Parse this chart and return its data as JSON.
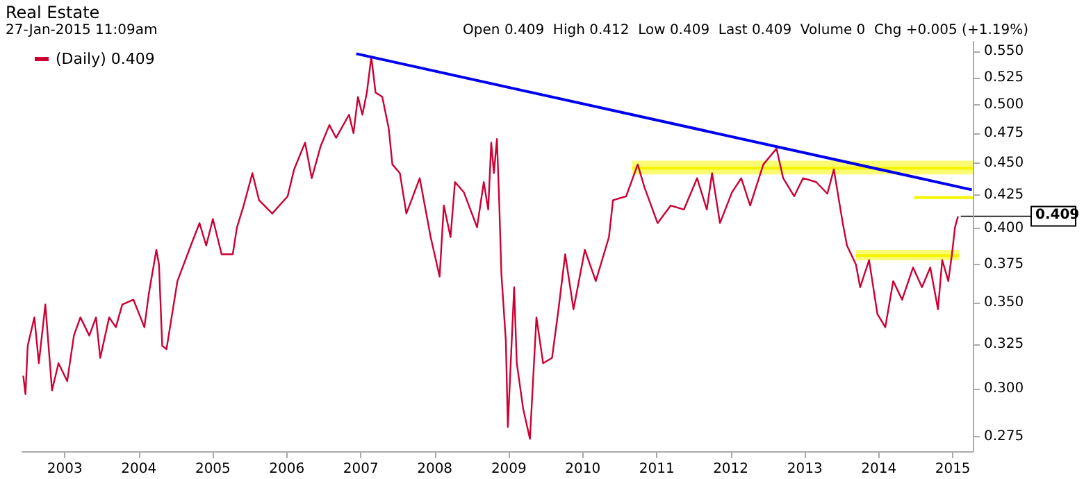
{
  "chart_data": {
    "type": "line",
    "title": "Real Estate",
    "annotations": [
      "27-Jan-2015 11:09am",
      "Open 0.409  High 0.412  Low 0.409  Last 0.409  Volume 0  Chg +0.005 (+1.19%)",
      {
        "text": "0.409",
        "x": "2015-01-27",
        "y": 0.409
      }
    ],
    "xlim": [
      "2002-06-05",
      "2015-04-10"
    ],
    "ylim": [
      0.268,
      0.56
    ],
    "log": true,
    "legend": "top left",
    "marker": "none",
    "line_style": "solid",
    "xticks": [
      "2003",
      "2004",
      "2005",
      "2006",
      "2007",
      "2008",
      "2009",
      "2010",
      "2011",
      "2012",
      "2013",
      "2014",
      "2015"
    ],
    "yticks": [
      0.275,
      {
        "value": 0.3,
        "label": "0.300"
      },
      0.325,
      {
        "value": 0.35,
        "label": "0.350"
      },
      0.375,
      {
        "value": 0.4,
        "label": "0.400"
      },
      0.425,
      {
        "value": 0.45,
        "label": "0.450"
      },
      0.475,
      {
        "value": 0.5,
        "label": "0.500"
      },
      0.525,
      {
        "value": 0.55,
        "label": "0.550"
      }
    ],
    "series": [
      {
        "type": "line",
        "color": "#f5f500",
        "x": [
          "2010-09-01",
          "2015-04-10"
        ],
        "values": [
          0.446,
          0.446
        ],
        "lower": [
          0.441,
          0.441
        ],
        "upper": [
          0.452,
          0.452
        ]
      },
      {
        "type": "line",
        "color": "#f5f500",
        "x": [
          "2014-06-25",
          "2015-04-10"
        ],
        "values": [
          0.423,
          0.423
        ],
        "lower": [
          0.422,
          0.422
        ],
        "upper": [
          0.424,
          0.424
        ]
      },
      {
        "type": "line",
        "color": "#f5f500",
        "x": [
          "2013-09-10",
          "2015-02-01"
        ],
        "values": [
          0.381,
          0.381
        ],
        "lower": [
          0.378,
          0.378
        ],
        "upper": [
          0.385,
          0.385
        ]
      },
      {
        "name": "(Daily) 0.409",
        "color": "#cc0033",
        "x": [
          "2002-06-10",
          "2002-06-21",
          "2002-07-02",
          "2002-08-04",
          "2002-08-26",
          "2002-09-27",
          "2002-10-30",
          "2002-12-01",
          "2003-01-13",
          "2003-02-15",
          "2003-03-19",
          "2003-05-02",
          "2003-06-04",
          "2003-06-25",
          "2003-08-08",
          "2003-09-10",
          "2003-10-12",
          "2003-12-06",
          "2004-01-29",
          "2004-02-20",
          "2004-03-28",
          "2004-04-10",
          "2004-04-26",
          "2004-05-17",
          "2004-07-10",
          "2004-09-14",
          "2004-10-27",
          "2004-11-29",
          "2005-01-01",
          "2005-02-13",
          "2005-04-09",
          "2005-04-30",
          "2005-06-02",
          "2005-07-15",
          "2005-08-17",
          "2005-10-21",
          "2006-01-05",
          "2006-02-06",
          "2006-04-01",
          "2006-05-04",
          "2006-06-17",
          "2006-07-30",
          "2006-09-01",
          "2006-11-04",
          "2006-11-26",
          "2006-12-18",
          "2007-01-09",
          "2007-01-31",
          "2007-02-22",
          "2007-03-15",
          "2007-04-17",
          "2007-05-19",
          "2007-06-06",
          "2007-07-13",
          "2007-08-14",
          "2007-10-19",
          "2007-12-12",
          "2008-01-25",
          "2008-02-15",
          "2008-03-19",
          "2008-04-10",
          "2008-05-24",
          "2008-07-28",
          "2008-08-30",
          "2008-09-21",
          "2008-10-06",
          "2008-10-19",
          "2008-11-03",
          "2008-11-14",
          "2008-11-25",
          "2008-12-17",
          "2008-12-27",
          "2009-01-27",
          "2009-02-09",
          "2009-03-13",
          "2009-04-15",
          "2009-05-17",
          "2009-06-19",
          "2009-08-02",
          "2009-09-03",
          "2009-10-06",
          "2009-11-16",
          "2010-01-11",
          "2010-03-06",
          "2010-05-10",
          "2010-05-30",
          "2010-08-03",
          "2010-09-29",
          "2010-11-01",
          "2011-01-05",
          "2011-03-11",
          "2011-05-15",
          "2011-07-19",
          "2011-09-05",
          "2011-10-01",
          "2011-11-09",
          "2012-01-07",
          "2012-02-22",
          "2012-04-06",
          "2012-06-10",
          "2012-08-14",
          "2012-09-16",
          "2012-11-09",
          "2012-12-23",
          "2013-02-26",
          "2013-04-22",
          "2013-05-24",
          "2013-07-07",
          "2013-07-28",
          "2013-09-10",
          "2013-10-01",
          "2013-11-14",
          "2013-12-25",
          "2014-02-02",
          "2014-03-13",
          "2014-04-26",
          "2014-06-19",
          "2014-08-02",
          "2014-09-12",
          "2014-10-20",
          "2014-11-10",
          "2014-12-10",
          "2014-12-28",
          "2015-01-12",
          "2015-01-27"
        ],
        "values": [
          0.307,
          0.297,
          0.324,
          0.341,
          0.314,
          0.349,
          0.299,
          0.314,
          0.304,
          0.33,
          0.341,
          0.33,
          0.341,
          0.317,
          0.341,
          0.335,
          0.349,
          0.352,
          0.335,
          0.356,
          0.385,
          0.375,
          0.324,
          0.322,
          0.364,
          0.388,
          0.404,
          0.388,
          0.407,
          0.382,
          0.382,
          0.401,
          0.417,
          0.442,
          0.421,
          0.411,
          0.424,
          0.445,
          0.467,
          0.438,
          0.464,
          0.482,
          0.471,
          0.491,
          0.475,
          0.507,
          0.491,
          0.511,
          0.545,
          0.511,
          0.507,
          0.479,
          0.449,
          0.442,
          0.411,
          0.438,
          0.394,
          0.367,
          0.417,
          0.394,
          0.435,
          0.427,
          0.401,
          0.435,
          0.414,
          0.467,
          0.442,
          0.47,
          0.421,
          0.369,
          0.327,
          0.28,
          0.36,
          0.314,
          0.289,
          0.274,
          0.341,
          0.314,
          0.317,
          0.346,
          0.382,
          0.346,
          0.385,
          0.364,
          0.394,
          0.421,
          0.424,
          0.449,
          0.431,
          0.404,
          0.417,
          0.414,
          0.438,
          0.414,
          0.442,
          0.404,
          0.427,
          0.438,
          0.417,
          0.449,
          0.462,
          0.438,
          0.424,
          0.438,
          0.435,
          0.426,
          0.445,
          0.404,
          0.388,
          0.375,
          0.36,
          0.378,
          0.343,
          0.335,
          0.364,
          0.352,
          0.373,
          0.36,
          0.373,
          0.346,
          0.378,
          0.364,
          0.382,
          0.401,
          0.409
        ]
      },
      {
        "type": "line",
        "color": "#0000ee",
        "x": [
          "2006-12-10",
          "2015-04-05"
        ],
        "values": [
          0.548,
          0.429
        ]
      }
    ]
  }
}
